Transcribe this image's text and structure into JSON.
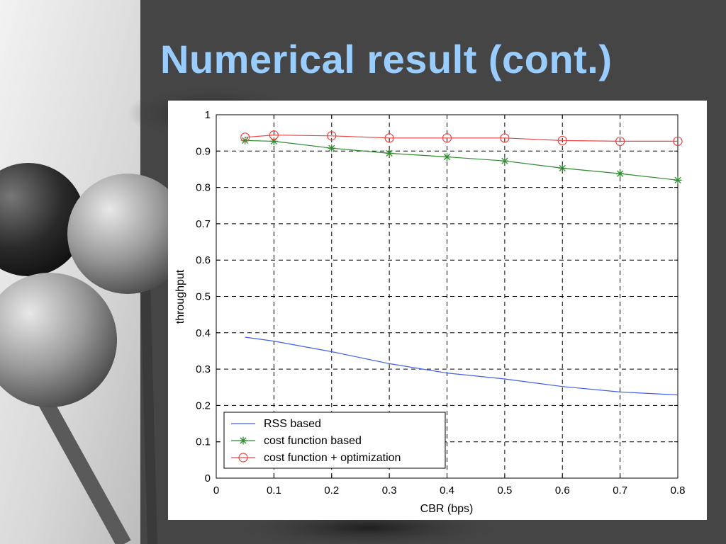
{
  "slide": {
    "title": "Numerical result (cont.)"
  },
  "colors": {
    "title": "#99ccff",
    "background": "#454545",
    "rss": "#3f5fef",
    "cost": "#2e8b2e",
    "optim": "#ee4444"
  },
  "chart_data": {
    "type": "line",
    "xlabel": "CBR (bps)",
    "ylabel": "throughput",
    "xlim": [
      0,
      0.8
    ],
    "ylim": [
      0,
      1
    ],
    "xticks": [
      0,
      0.1,
      0.2,
      0.3,
      0.4,
      0.5,
      0.6,
      0.7,
      0.8
    ],
    "xtick_labels": [
      "0",
      "0.1",
      "0.2",
      "0.3",
      "0.4",
      "0.5",
      "0.6",
      "0.7",
      "0.8"
    ],
    "yticks": [
      0,
      0.1,
      0.2,
      0.3,
      0.4,
      0.5,
      0.6,
      0.7,
      0.8,
      0.9,
      1
    ],
    "ytick_labels": [
      "0",
      "0.1",
      "0.2",
      "0.3",
      "0.4",
      "0.5",
      "0.6",
      "0.7",
      "0.8",
      "0.9",
      "1"
    ],
    "grid": true,
    "legend_position": "bottom-left",
    "series": [
      {
        "name": "RSS based",
        "color": "#3f5fef",
        "marker": "none",
        "x": [
          0.05,
          0.1,
          0.2,
          0.3,
          0.4,
          0.5,
          0.6,
          0.7,
          0.8
        ],
        "y": [
          0.388,
          0.377,
          0.348,
          0.315,
          0.289,
          0.273,
          0.252,
          0.237,
          0.229
        ]
      },
      {
        "name": "cost function based",
        "color": "#2e8b2e",
        "marker": "asterisk",
        "x": [
          0.05,
          0.1,
          0.2,
          0.3,
          0.4,
          0.5,
          0.6,
          0.7,
          0.8
        ],
        "y": [
          0.929,
          0.927,
          0.908,
          0.894,
          0.884,
          0.873,
          0.853,
          0.838,
          0.82
        ]
      },
      {
        "name": "cost function + optimization",
        "color": "#ee4444",
        "marker": "circle",
        "x": [
          0.05,
          0.1,
          0.2,
          0.3,
          0.4,
          0.5,
          0.6,
          0.7,
          0.8
        ],
        "y": [
          0.938,
          0.944,
          0.942,
          0.936,
          0.936,
          0.936,
          0.929,
          0.927,
          0.927
        ]
      }
    ]
  }
}
